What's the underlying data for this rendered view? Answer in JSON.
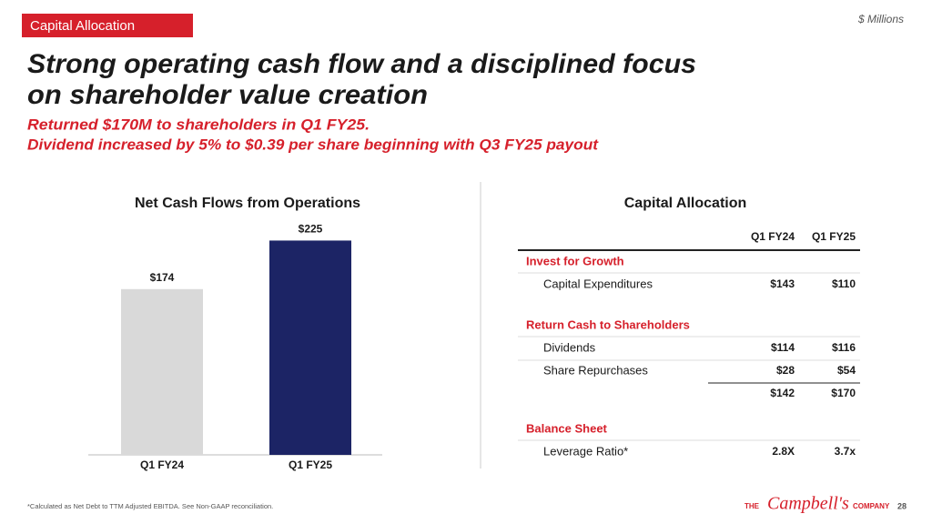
{
  "header": {
    "tag": "Capital Allocation",
    "units": "$ Millions",
    "title": [
      "Strong operating cash flow and a disciplined focus",
      "on shareholder value creation"
    ],
    "subtitle": [
      "Returned $170M to shareholders in Q1 FY25.",
      "Dividend increased by 5% to $0.39 per share beginning with Q3 FY25 payout"
    ]
  },
  "chart_data": {
    "type": "bar",
    "title": "Net Cash Flows from Operations",
    "categories": [
      "Q1 FY24",
      "Q1 FY25"
    ],
    "values": [
      174,
      225
    ],
    "value_labels": [
      "$174",
      "$225"
    ],
    "colors": [
      "#d9d9d9",
      "#1c2465"
    ]
  },
  "table": {
    "title": "Capital Allocation",
    "columns": [
      "Q1 FY24",
      "Q1 FY25"
    ],
    "sections": [
      {
        "heading": "Invest for Growth",
        "rows": [
          {
            "label": "Capital Expenditures",
            "values": [
              "$143",
              "$110"
            ]
          }
        ]
      },
      {
        "heading": "Return Cash to Shareholders",
        "rows": [
          {
            "label": "Dividends",
            "values": [
              "$114",
              "$116"
            ]
          },
          {
            "label": "Share Repurchases",
            "values": [
              "$28",
              "$54"
            ]
          }
        ],
        "total": [
          "$142",
          "$170"
        ]
      },
      {
        "heading": "Balance Sheet",
        "rows": [
          {
            "label": "Leverage Ratio*",
            "values": [
              "2.8X",
              "3.7x"
            ]
          }
        ]
      }
    ]
  },
  "footer": {
    "note": "*Calculated as Net Debt to TTM Adjusted EBITDA. See Non-GAAP reconciliation.",
    "logo": [
      "THE",
      "Campbell's",
      "COMPANY"
    ],
    "page": "28"
  }
}
